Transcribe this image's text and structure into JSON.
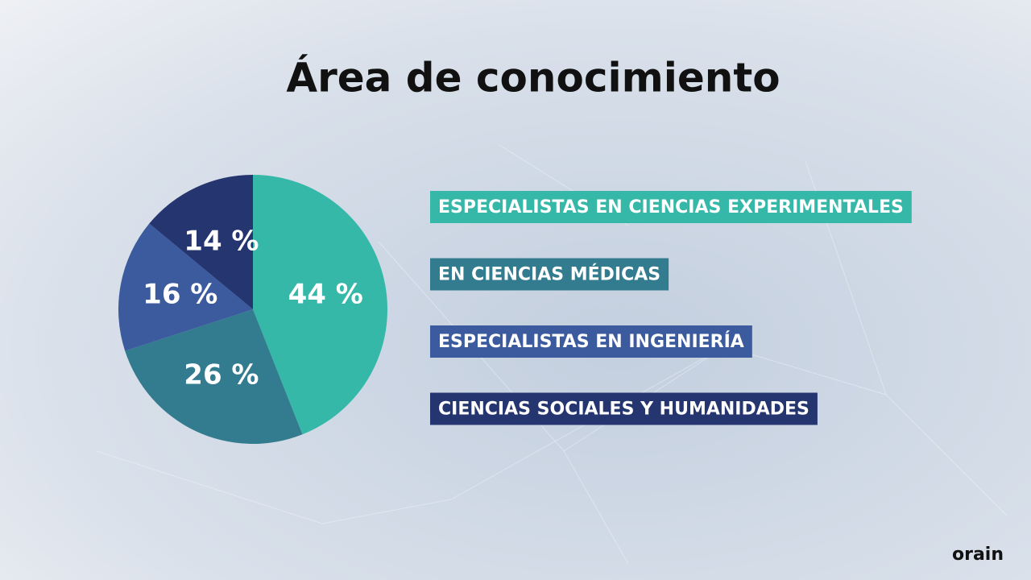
{
  "chart_data": {
    "type": "pie",
    "title": "Área de conocimiento",
    "categories": [
      "ESPECIALISTAS EN CIENCIAS EXPERIMENTALES",
      "EN CIENCIAS MÉDICAS",
      "ESPECIALISTAS EN INGENIERÍA",
      "CIENCIAS SOCIALES Y HUMANIDADES"
    ],
    "values": [
      44,
      26,
      16,
      14
    ],
    "value_labels": [
      "44 %",
      "26 %",
      "16 %",
      "14 %"
    ],
    "colors": [
      "#35b8a8",
      "#337b8f",
      "#3c5a9e",
      "#24356f"
    ]
  },
  "brand": "orain"
}
